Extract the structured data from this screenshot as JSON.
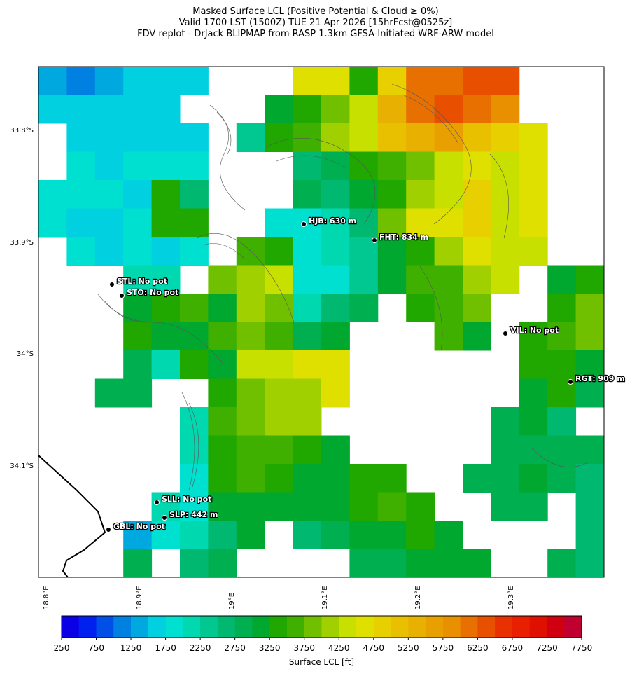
{
  "map": {
    "title": [
      "Masked Surface LCL (Positive Potential & Cloud ≥ 0%)",
      "Valid 1700 LST (1500Z) TUE 21 Apr 2026 [15hrFcst@0525z]",
      "FDV replot - DrJack BLIPMAP from RASP 1.3km GFSA-Initiated WRF-ARW model"
    ],
    "lat_labels": [
      "33.8°S",
      "33.9°S",
      "34°S",
      "34.1°S"
    ],
    "lon_labels": [
      "18.8°E",
      "18.9°E",
      "19°E",
      "19.1°E",
      "19.2°E",
      "19.3°E"
    ],
    "stations": [
      "HJB: 630 m",
      "FHT: 834 m",
      "STL: No pot",
      "STO: No pot",
      "VIL: No pot",
      "RGT: 909 m",
      "SLL: No pot",
      "SLP: 442 m",
      "GBL: No pot"
    ],
    "cells": [
      [
        1250,
        1000,
        1250,
        1500,
        1500,
        1500,
        null,
        null,
        null,
        4500,
        4500,
        3250,
        4750,
        6000,
        6000,
        6250,
        6250,
        null,
        null,
        null
      ],
      [
        1500,
        1500,
        1500,
        1500,
        1500,
        null,
        null,
        null,
        3000,
        3250,
        3750,
        4250,
        5250,
        6000,
        6250,
        6000,
        5750,
        null,
        null,
        null
      ],
      [
        null,
        1500,
        1500,
        1500,
        1500,
        1500,
        null,
        2250,
        3250,
        3500,
        4000,
        4250,
        5000,
        5250,
        5500,
        5000,
        4750,
        4500,
        null,
        null
      ],
      [
        null,
        1750,
        1500,
        1750,
        1750,
        1750,
        null,
        null,
        null,
        2500,
        2750,
        3250,
        3500,
        3750,
        4250,
        4500,
        4250,
        4500,
        null,
        null
      ],
      [
        1750,
        1750,
        1750,
        1500,
        3250,
        2500,
        null,
        null,
        null,
        2750,
        2500,
        3000,
        3250,
        4000,
        4250,
        4750,
        4250,
        4500,
        null,
        null
      ],
      [
        1750,
        1500,
        1500,
        1750,
        3250,
        3250,
        null,
        null,
        1750,
        1750,
        2000,
        2500,
        3750,
        4500,
        4500,
        4750,
        4250,
        4500,
        null,
        null
      ],
      [
        null,
        1750,
        1500,
        1750,
        1500,
        1750,
        null,
        3500,
        3250,
        1750,
        2000,
        2250,
        3000,
        3250,
        4000,
        4500,
        4250,
        4250,
        null,
        null
      ],
      [
        null,
        null,
        null,
        2000,
        2000,
        null,
        3750,
        4000,
        4250,
        1750,
        1750,
        2250,
        3000,
        3500,
        3500,
        4000,
        4250,
        null,
        3000,
        3250
      ],
      [
        null,
        null,
        null,
        3000,
        3250,
        3500,
        3000,
        4000,
        3750,
        2000,
        2500,
        2750,
        null,
        3250,
        3500,
        3750,
        null,
        null,
        3250,
        3750
      ],
      [
        null,
        null,
        null,
        3250,
        3000,
        3000,
        3500,
        3750,
        3500,
        2750,
        3000,
        null,
        null,
        null,
        3500,
        3000,
        null,
        3250,
        3500,
        3750
      ],
      [
        null,
        null,
        null,
        2750,
        2000,
        3250,
        3000,
        4250,
        4250,
        4500,
        4500,
        null,
        null,
        null,
        null,
        null,
        null,
        3250,
        3250,
        3000
      ],
      [
        null,
        null,
        2750,
        2750,
        null,
        null,
        3250,
        3750,
        4000,
        4000,
        4500,
        null,
        null,
        null,
        null,
        null,
        null,
        3000,
        3250,
        2750
      ],
      [
        null,
        null,
        null,
        null,
        null,
        2000,
        3500,
        3750,
        4000,
        4000,
        null,
        null,
        null,
        null,
        null,
        null,
        2750,
        3000,
        2500,
        null
      ],
      [
        null,
        null,
        null,
        null,
        null,
        2000,
        3250,
        3500,
        3500,
        3250,
        3000,
        null,
        null,
        null,
        null,
        null,
        2750,
        2750,
        2750,
        2750
      ],
      [
        null,
        null,
        null,
        null,
        null,
        1750,
        3250,
        3500,
        3250,
        3000,
        3000,
        3250,
        3250,
        null,
        null,
        2750,
        2750,
        3000,
        2750,
        2500
      ],
      [
        null,
        null,
        null,
        null,
        2000,
        1750,
        3000,
        3000,
        3000,
        3000,
        3000,
        3250,
        3500,
        3250,
        null,
        null,
        2750,
        2750,
        null,
        2500
      ],
      [
        null,
        null,
        null,
        1250,
        1750,
        2000,
        2500,
        3000,
        null,
        2500,
        2750,
        3000,
        3000,
        3250,
        3000,
        null,
        null,
        null,
        null,
        2500
      ],
      [
        null,
        null,
        null,
        2750,
        null,
        2500,
        2750,
        null,
        null,
        null,
        null,
        2750,
        2750,
        3000,
        3000,
        3000,
        null,
        null,
        2750,
        2500
      ]
    ]
  },
  "colorbar": {
    "label": "Surface LCL [ft]",
    "lim": [
      250,
      7750
    ],
    "step": 250,
    "ticks": [
      250,
      750,
      1250,
      1750,
      2250,
      2750,
      3250,
      3750,
      4250,
      4750,
      5250,
      5750,
      6250,
      6750,
      7250,
      7750
    ],
    "colors": [
      "#0a00e6",
      "#0020f0",
      "#0050e8",
      "#0080e0",
      "#00a8e0",
      "#00d0e0",
      "#00e0d0",
      "#00d8b0",
      "#00c890",
      "#00b870",
      "#00b050",
      "#00a830",
      "#20a800",
      "#40b000",
      "#70c000",
      "#a0d000",
      "#c8e000",
      "#e0e000",
      "#e8d000",
      "#e8c000",
      "#e8b000",
      "#e8a000",
      "#e89000",
      "#e87000",
      "#e85000",
      "#e83000",
      "#e82000",
      "#e01000",
      "#d00010",
      "#c00030"
    ]
  }
}
